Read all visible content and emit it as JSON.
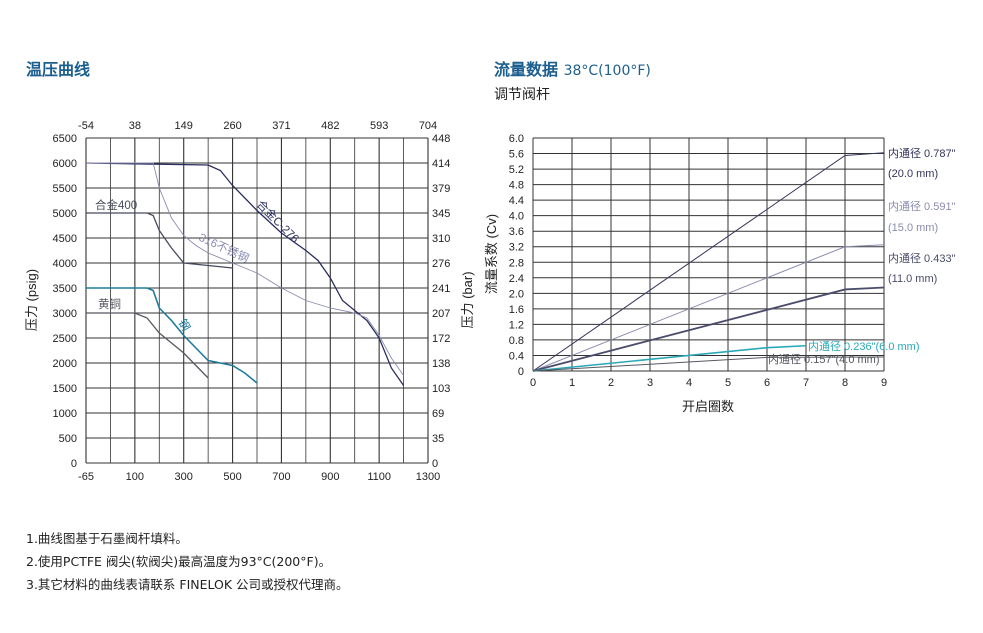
{
  "left_title": "温压曲线",
  "right_title": "流量数据",
  "right_title_condition": "38°C(100°F)",
  "right_subtitle": "调节阀杆",
  "notes": [
    "1.曲线图基于石墨阀杆填料。",
    "2.使用PCTFE 阀尖(软阀尖)最高温度为93°C(200°F)。",
    "3.其它材料的曲线表请联系 FINELOK 公司或授权代理商。"
  ],
  "chart_data": [
    {
      "type": "line",
      "ylabel": "压力 (psig)",
      "y2label": "压力 (bar)",
      "xlim": [
        -65,
        1300
      ],
      "ylim": [
        0,
        6500
      ],
      "grid": true,
      "x_ticks_bottom": [
        "-65",
        "100",
        "300",
        "500",
        "700",
        "900",
        "1100",
        "1300"
      ],
      "x_ticks_top": [
        "-54",
        "38",
        "149",
        "260",
        "371",
        "482",
        "593",
        "704"
      ],
      "y_ticks_left": [
        "0",
        "500",
        "1000",
        "1500",
        "2000",
        "2500",
        "3000",
        "3500",
        "4000",
        "4500",
        "5000",
        "5500",
        "6000",
        "6500"
      ],
      "y_ticks_right": [
        "0",
        "35",
        "69",
        "103",
        "138",
        "172",
        "207",
        "241",
        "276",
        "310",
        "345",
        "379",
        "414",
        "448"
      ],
      "series": [
        {
          "name": "合金C-276",
          "color": "#2b2d5e",
          "x": [
            -65,
            400,
            450,
            500,
            600,
            700,
            800,
            850,
            900,
            950,
            1000,
            1050,
            1100,
            1150,
            1200
          ],
          "y": [
            6000,
            5960,
            5850,
            5550,
            5050,
            4600,
            4250,
            4050,
            3700,
            3250,
            3050,
            2850,
            2500,
            1900,
            1550
          ]
        },
        {
          "name": "316不锈钢",
          "color": "#8a8cb0",
          "x": [
            -65,
            175,
            200,
            250,
            300,
            350,
            400,
            500,
            600,
            700,
            800,
            900,
            1000,
            1050,
            1100,
            1150,
            1200
          ],
          "y": [
            6000,
            6000,
            5500,
            4900,
            4550,
            4350,
            4200,
            4000,
            3800,
            3500,
            3250,
            3100,
            3000,
            2900,
            2550,
            2100,
            1750
          ]
        },
        {
          "name": "合金400",
          "color": "#464a5c",
          "x": [
            -65,
            150,
            175,
            200,
            250,
            300,
            400,
            500
          ],
          "y": [
            5000,
            5000,
            4950,
            4650,
            4300,
            4000,
            3950,
            3900
          ]
        },
        {
          "name": "钢",
          "color": "#1f7b9c",
          "x": [
            -65,
            150,
            175,
            200,
            250,
            300,
            350,
            400,
            500,
            550,
            600
          ],
          "y": [
            3500,
            3500,
            3450,
            3100,
            2850,
            2550,
            2300,
            2050,
            1950,
            1800,
            1600
          ]
        },
        {
          "name": "黄铜",
          "color": "#55585f",
          "x": [
            -65,
            100,
            150,
            200,
            250,
            300,
            350,
            400
          ],
          "y": [
            3000,
            3000,
            2900,
            2600,
            2400,
            2200,
            1950,
            1700
          ]
        }
      ]
    },
    {
      "type": "line",
      "xlabel": "开启圈数",
      "ylabel": "流量系数 (Cv)",
      "xlim": [
        0,
        9
      ],
      "ylim": [
        0,
        6.0
      ],
      "grid": true,
      "x_ticks": [
        "0",
        "1",
        "2",
        "3",
        "4",
        "5",
        "6",
        "7",
        "8",
        "9"
      ],
      "y_ticks": [
        "0",
        "0.4",
        "0.8",
        "1.2",
        "1.6",
        "2.0",
        "2.4",
        "2.8",
        "3.2",
        "3.6",
        "4.0",
        "4.4",
        "4.8",
        "5.2",
        "5.6",
        "6.0"
      ],
      "series": [
        {
          "name": "内通径 0.787\"",
          "name2": "(20.0 mm)",
          "color": "#33345c",
          "x": [
            0,
            8,
            9
          ],
          "y": [
            0,
            5.55,
            5.62
          ]
        },
        {
          "name": "内通径 0.591\"",
          "name2": "(15.0 mm)",
          "color": "#8a8cb0",
          "x": [
            0,
            8,
            9
          ],
          "y": [
            0,
            3.2,
            3.25
          ]
        },
        {
          "name": "内通径 0.433\"",
          "name2": "(11.0 mm)",
          "color": "#4a4c6a",
          "x": [
            0,
            8,
            9
          ],
          "y": [
            0,
            2.1,
            2.15
          ]
        },
        {
          "name": "内通径 0.236\"(6.0 mm)",
          "color": "#2aa8b8",
          "x": [
            0,
            6,
            7
          ],
          "y": [
            0,
            0.6,
            0.65
          ]
        },
        {
          "name": "内通径 0.157\"(4.0 mm)",
          "color": "#55585f",
          "x": [
            0,
            6,
            9
          ],
          "y": [
            0,
            0.35,
            0.36
          ]
        }
      ]
    }
  ]
}
